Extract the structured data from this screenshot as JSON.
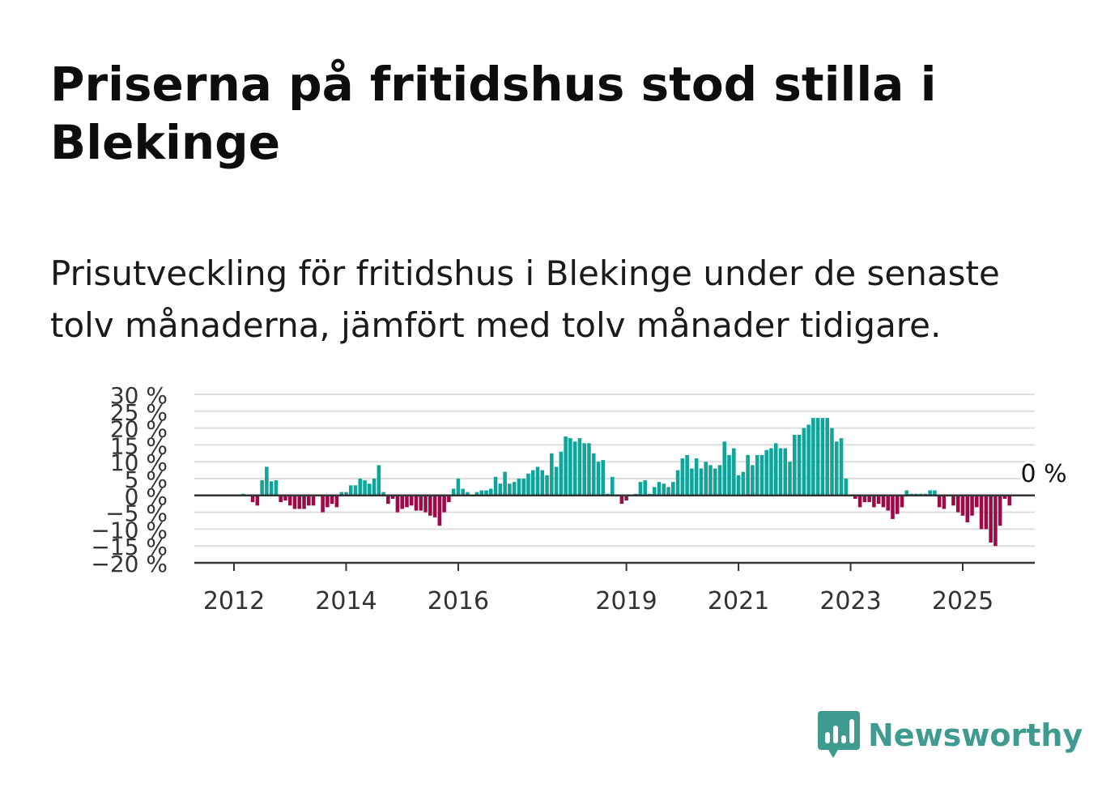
{
  "title": "Priserna på fritidshus stod stilla i Blekinge",
  "subtitle": "Prisutveckling för fritidshus i Blekinge under de senaste tolv månaderna, jämfört med tolv månader tidigare.",
  "brand": {
    "name": "Newsworthy",
    "icon": "bar-chart-speech-bubble-icon",
    "color": "#3f9a90"
  },
  "colors": {
    "positive": "#0ea59b",
    "negative": "#9e0a47",
    "grid": "#dddddd",
    "axis": "#333333"
  },
  "chart_data": {
    "type": "bar",
    "ylim": [
      -20,
      30
    ],
    "yticks": [
      30,
      25,
      20,
      15,
      10,
      5,
      0,
      -5,
      -10,
      -15,
      -20
    ],
    "ytick_labels": [
      "30 %",
      "25 %",
      "20 %",
      "15 %",
      "10 %",
      "5 %",
      "0 %",
      "−5 %",
      "−10 %",
      "−15 %",
      "−20 %"
    ],
    "xticks": [
      2012,
      2014,
      2016,
      2019,
      2021,
      2023,
      2025
    ],
    "xtick_labels": [
      "2012",
      "2014",
      "2016",
      "2019",
      "2021",
      "2023",
      "2025"
    ],
    "start": "2011-06",
    "last_value_label": "0 %",
    "values": [
      0.2,
      0.1,
      0.1,
      0,
      0,
      0,
      0,
      0,
      0,
      0.5,
      0.3,
      -2,
      -3,
      4.5,
      8.5,
      4.2,
      4.5,
      -2,
      -1.5,
      -3,
      -4,
      -4,
      -4,
      -3,
      -3,
      0,
      -5,
      -3.5,
      -2.5,
      -3.5,
      1,
      1,
      3,
      3,
      5,
      4.5,
      3.5,
      5,
      9,
      1,
      -2.5,
      -1,
      -5,
      -4,
      -3.5,
      -3,
      -4.5,
      -4.5,
      -5,
      -6,
      -6.5,
      -9,
      -5,
      -2,
      2,
      5,
      2,
      1,
      0.2,
      1,
      1.5,
      1.5,
      2,
      5.5,
      3.5,
      7,
      3.5,
      4,
      5,
      5,
      6.5,
      7.5,
      8.5,
      7.5,
      6,
      12.5,
      8.5,
      13,
      17.5,
      17,
      16,
      17,
      15.5,
      15.5,
      12.5,
      10,
      10.5,
      0.5,
      5.5,
      0,
      -2.5,
      -1.5,
      0.2,
      0.5,
      4,
      4.5,
      0.5,
      2.5,
      4,
      3.5,
      2.5,
      4,
      7.5,
      11,
      12,
      8,
      11,
      8,
      10,
      9,
      8,
      9,
      16,
      12,
      14,
      6,
      7,
      12,
      9,
      12,
      12,
      13.5,
      14,
      15.5,
      14,
      14,
      10,
      18,
      18,
      20,
      21,
      23,
      23,
      23,
      23,
      20,
      16,
      17,
      5,
      0,
      -1,
      -3.5,
      -2,
      -2,
      -3.5,
      -2.5,
      -3.5,
      -4.5,
      -7,
      -5.5,
      -3.5,
      1.5,
      0.5,
      0.5,
      0.5,
      0.5,
      1.5,
      1.5,
      -3.5,
      -4,
      0,
      -3,
      -5,
      -6,
      -8,
      -6,
      -3.5,
      -10,
      -10,
      -14,
      -15,
      -9,
      -1,
      -3,
      0
    ]
  }
}
